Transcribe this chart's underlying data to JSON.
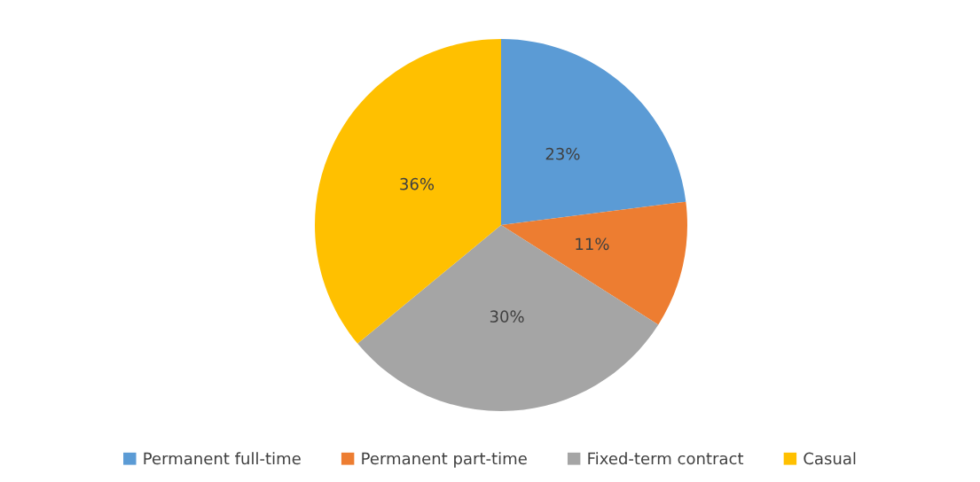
{
  "chart_data": {
    "type": "pie",
    "categories": [
      "Permanent full-time",
      "Permanent part-time",
      "Fixed-term contract",
      "Casual"
    ],
    "values": [
      23,
      11,
      30,
      36
    ],
    "colors": [
      "#5b9bd5",
      "#ed7d31",
      "#a5a5a5",
      "#ffc000"
    ],
    "value_labels": [
      "23%",
      "11%",
      "30%",
      "36%"
    ],
    "legend": "bottom"
  }
}
